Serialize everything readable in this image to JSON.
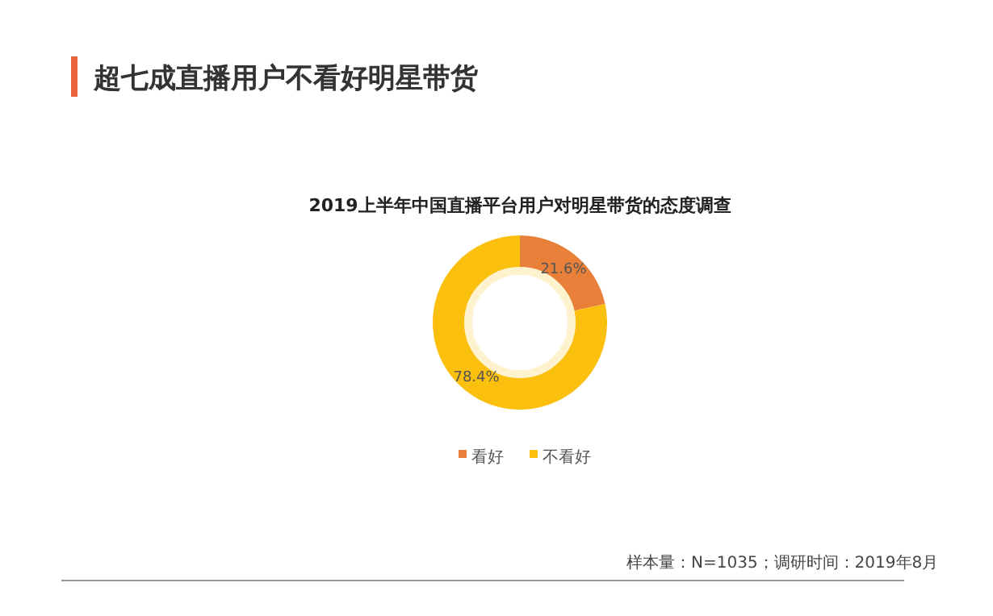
{
  "chart_data": {
    "type": "donut",
    "title": "超七成直播用户不看好明星带货",
    "subtitle": "2019上半年中国直播平台用户对明星带货的态度调查",
    "categories": [
      "看好",
      "不看好"
    ],
    "values": [
      21.6,
      78.4
    ],
    "colors": [
      "#e8803a",
      "#fbbf0e"
    ],
    "value_labels": [
      "21.6%",
      "78.4%"
    ],
    "legend": "bottom",
    "annotations": [
      "样本量：N=1035；调研时间：2019年8月"
    ]
  }
}
